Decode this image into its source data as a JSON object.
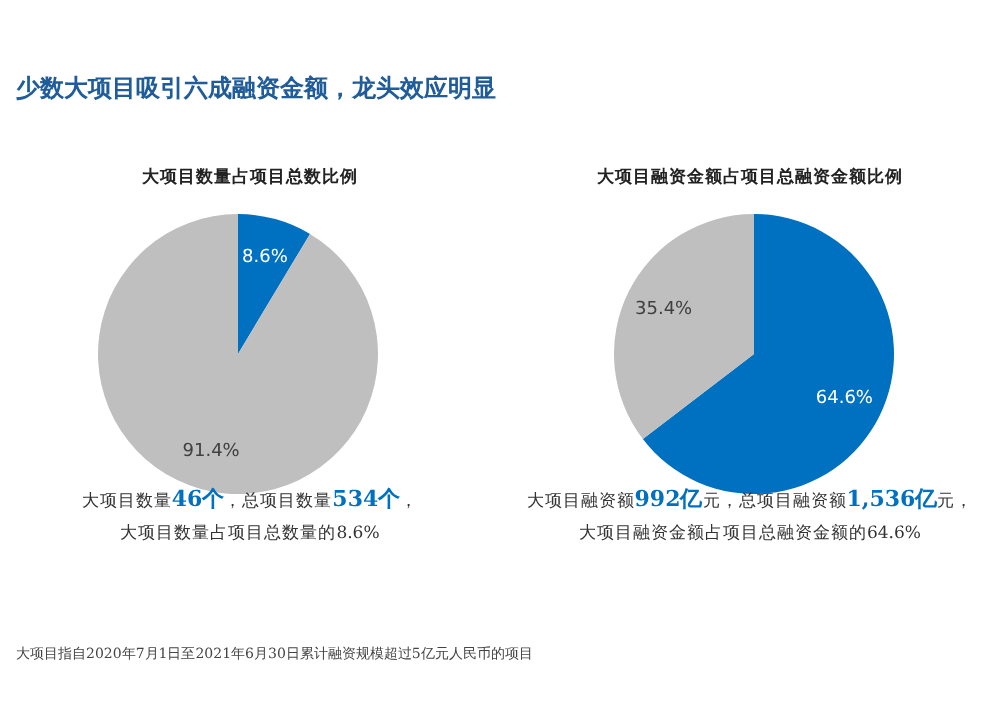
{
  "chart_data": [
    {
      "type": "pie",
      "title": "大项目数量占项目总数比例",
      "categories": [
        null,
        null
      ],
      "values": [
        8.6,
        91.4
      ],
      "value_labels": [
        "8.6%",
        "91.4%"
      ],
      "colors": [
        "#0070c0",
        "#bfbfbf"
      ],
      "legend": false,
      "annotations": [
        "少数大项目吸引六成融资金额，龙头效应明显",
        "大项目数量46个，总项目数量534个，",
        "大项目数量占项目总数量的8.6%"
      ]
    },
    {
      "type": "pie",
      "title": "大项目融资金额占项目总融资金额比例",
      "categories": [
        null,
        null
      ],
      "values": [
        64.6,
        35.4
      ],
      "value_labels": [
        "64.6%",
        "35.4%"
      ],
      "colors": [
        "#0070c0",
        "#bfbfbf"
      ],
      "legend": false,
      "annotations": [
        "大项目融资额992亿元，总项目融资额1,536亿元，",
        "大项目融资金额占项目总融资金额的64.6%",
        "大项目指自2020年7月1日至2021年6月30日累计融资规模超过5亿元人民币的项目"
      ]
    }
  ]
}
